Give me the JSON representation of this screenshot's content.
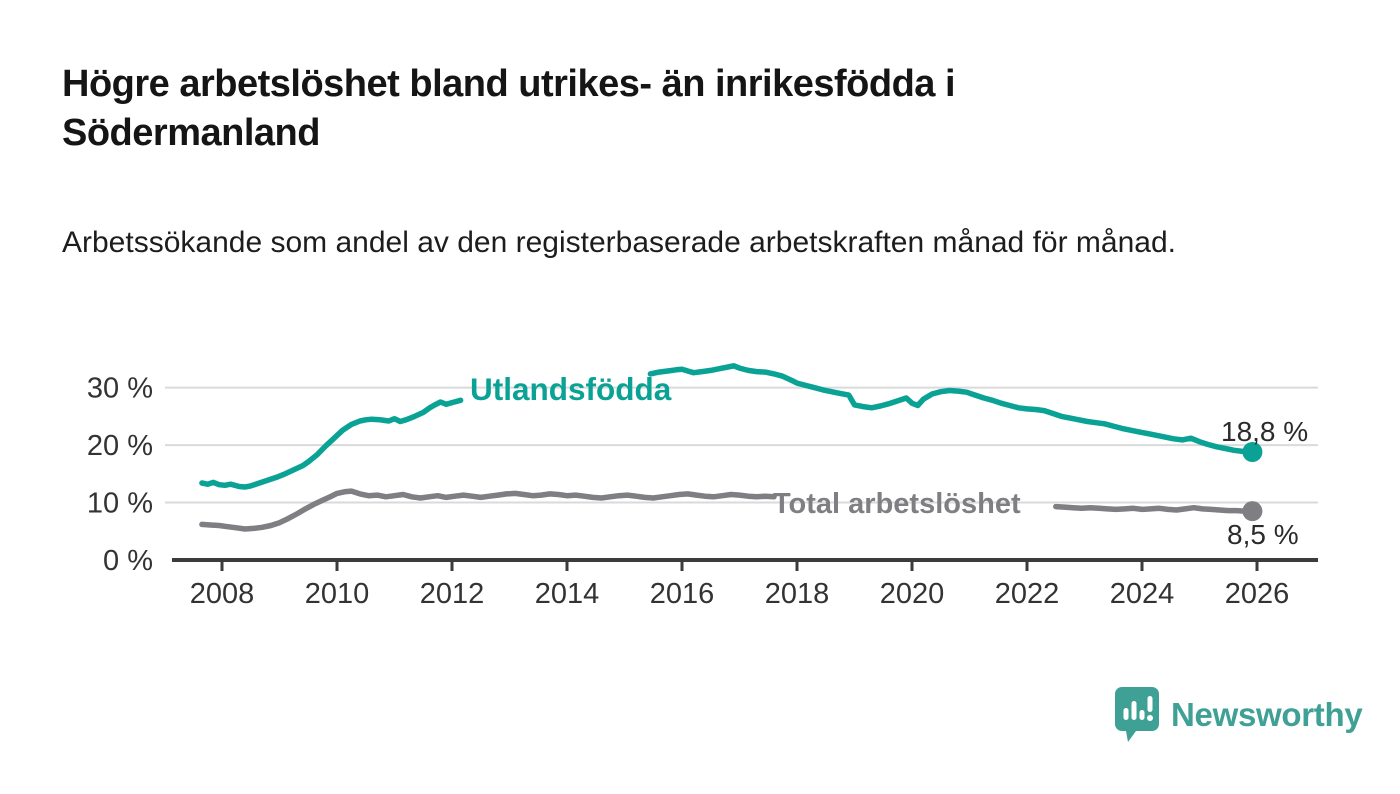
{
  "header": {
    "title": "Högre arbetslöshet bland utrikes- än inrikesfödda i Södermanland",
    "subtitle": "Arbetssökande som andel av den registerbaserade arbetskraften månad för månad."
  },
  "footer": {
    "brand": "Newsworthy",
    "logo_icon": "speech-bubble-with-bar-chart-and-exclamation",
    "brand_color": "#3fa096"
  },
  "colors": {
    "series_foreign_born": "#0ba296",
    "series_total": "#7e7e83",
    "gridline": "#dadada",
    "axis": "#3b3b3b",
    "axis_text": "#333333",
    "value_label_text": "#2b2b2b",
    "background": "#ffffff"
  },
  "chart_data": {
    "type": "line",
    "unit": "%",
    "grid": "horizontal",
    "legend_position": "inline-labels",
    "x_axis": {
      "ticks": [
        2008,
        2010,
        2012,
        2014,
        2016,
        2018,
        2020,
        2022,
        2024,
        2026
      ],
      "range": [
        2007.6,
        2027.0
      ]
    },
    "y_axis": {
      "ticks": [
        0,
        10,
        20,
        30
      ],
      "tick_suffix": " %",
      "range": [
        0,
        35
      ]
    },
    "series": [
      {
        "name": "Utlandsfödda",
        "color": "#0ba296",
        "end_value": 18.8,
        "end_label": "18,8 %",
        "segments": [
          [
            [
              2007.65,
              13.4
            ],
            [
              2007.75,
              13.2
            ],
            [
              2007.85,
              13.5
            ],
            [
              2007.95,
              13.1
            ],
            [
              2008.05,
              13.0
            ],
            [
              2008.15,
              13.2
            ],
            [
              2008.3,
              12.8
            ],
            [
              2008.4,
              12.7
            ],
            [
              2008.5,
              12.9
            ],
            [
              2008.65,
              13.4
            ],
            [
              2008.8,
              13.9
            ],
            [
              2008.95,
              14.4
            ],
            [
              2009.1,
              15.0
            ],
            [
              2009.25,
              15.7
            ],
            [
              2009.4,
              16.4
            ],
            [
              2009.5,
              17.1
            ],
            [
              2009.65,
              18.3
            ],
            [
              2009.8,
              19.8
            ],
            [
              2009.95,
              21.2
            ],
            [
              2010.1,
              22.6
            ],
            [
              2010.25,
              23.6
            ],
            [
              2010.4,
              24.2
            ],
            [
              2010.5,
              24.4
            ],
            [
              2010.6,
              24.5
            ],
            [
              2010.75,
              24.4
            ],
            [
              2010.9,
              24.2
            ],
            [
              2011.0,
              24.6
            ],
            [
              2011.1,
              24.1
            ],
            [
              2011.2,
              24.4
            ],
            [
              2011.35,
              25.0
            ],
            [
              2011.5,
              25.7
            ],
            [
              2011.6,
              26.4
            ],
            [
              2011.7,
              27.0
            ],
            [
              2011.8,
              27.5
            ],
            [
              2011.9,
              27.1
            ],
            [
              2012.0,
              27.4
            ],
            [
              2012.15,
              27.8
            ]
          ],
          [
            [
              2015.45,
              32.4
            ],
            [
              2015.6,
              32.7
            ],
            [
              2015.75,
              32.9
            ],
            [
              2015.9,
              33.1
            ],
            [
              2016.0,
              33.2
            ],
            [
              2016.1,
              32.9
            ],
            [
              2016.2,
              32.6
            ],
            [
              2016.35,
              32.8
            ],
            [
              2016.5,
              33.0
            ],
            [
              2016.65,
              33.3
            ],
            [
              2016.8,
              33.6
            ],
            [
              2016.9,
              33.8
            ],
            [
              2017.0,
              33.4
            ],
            [
              2017.15,
              33.0
            ],
            [
              2017.3,
              32.8
            ],
            [
              2017.45,
              32.7
            ],
            [
              2017.6,
              32.4
            ],
            [
              2017.75,
              32.0
            ],
            [
              2017.9,
              31.3
            ],
            [
              2018.0,
              30.8
            ],
            [
              2018.15,
              30.4
            ],
            [
              2018.3,
              30.0
            ],
            [
              2018.45,
              29.6
            ],
            [
              2018.6,
              29.3
            ],
            [
              2018.75,
              29.0
            ],
            [
              2018.9,
              28.7
            ],
            [
              2019.0,
              27.0
            ],
            [
              2019.15,
              26.7
            ],
            [
              2019.3,
              26.5
            ],
            [
              2019.45,
              26.8
            ],
            [
              2019.6,
              27.2
            ],
            [
              2019.75,
              27.7
            ],
            [
              2019.9,
              28.2
            ],
            [
              2020.0,
              27.3
            ],
            [
              2020.1,
              26.9
            ],
            [
              2020.2,
              28.0
            ],
            [
              2020.35,
              28.9
            ],
            [
              2020.5,
              29.3
            ],
            [
              2020.65,
              29.5
            ],
            [
              2020.8,
              29.4
            ],
            [
              2020.95,
              29.2
            ],
            [
              2021.1,
              28.7
            ],
            [
              2021.25,
              28.2
            ],
            [
              2021.4,
              27.8
            ],
            [
              2021.55,
              27.3
            ],
            [
              2021.7,
              26.9
            ],
            [
              2021.85,
              26.5
            ],
            [
              2022.0,
              26.3
            ],
            [
              2022.15,
              26.2
            ],
            [
              2022.3,
              26.0
            ],
            [
              2022.45,
              25.5
            ],
            [
              2022.6,
              25.0
            ],
            [
              2022.75,
              24.7
            ],
            [
              2022.9,
              24.4
            ],
            [
              2023.05,
              24.1
            ],
            [
              2023.2,
              23.9
            ],
            [
              2023.35,
              23.7
            ],
            [
              2023.5,
              23.3
            ],
            [
              2023.65,
              22.9
            ],
            [
              2023.8,
              22.6
            ],
            [
              2023.95,
              22.3
            ],
            [
              2024.1,
              22.0
            ],
            [
              2024.25,
              21.7
            ],
            [
              2024.4,
              21.4
            ],
            [
              2024.55,
              21.1
            ],
            [
              2024.7,
              20.9
            ],
            [
              2024.85,
              21.2
            ],
            [
              2025.0,
              20.6
            ],
            [
              2025.15,
              20.1
            ],
            [
              2025.3,
              19.7
            ],
            [
              2025.45,
              19.4
            ],
            [
              2025.6,
              19.1
            ],
            [
              2025.75,
              18.9
            ],
            [
              2025.92,
              18.8
            ]
          ]
        ]
      },
      {
        "name": "Total arbetslöshet",
        "color": "#7e7e83",
        "end_value": 8.5,
        "end_label": "8,5 %",
        "segments": [
          [
            [
              2007.65,
              6.2
            ],
            [
              2007.8,
              6.1
            ],
            [
              2007.95,
              6.0
            ],
            [
              2008.1,
              5.8
            ],
            [
              2008.25,
              5.6
            ],
            [
              2008.4,
              5.4
            ],
            [
              2008.55,
              5.5
            ],
            [
              2008.7,
              5.7
            ],
            [
              2008.85,
              6.0
            ],
            [
              2009.0,
              6.5
            ],
            [
              2009.15,
              7.2
            ],
            [
              2009.3,
              8.0
            ],
            [
              2009.45,
              8.9
            ],
            [
              2009.6,
              9.7
            ],
            [
              2009.75,
              10.4
            ],
            [
              2009.9,
              11.1
            ],
            [
              2010.0,
              11.6
            ],
            [
              2010.15,
              11.9
            ],
            [
              2010.25,
              12.0
            ],
            [
              2010.4,
              11.5
            ],
            [
              2010.55,
              11.2
            ],
            [
              2010.7,
              11.3
            ],
            [
              2010.85,
              11.0
            ],
            [
              2011.0,
              11.2
            ],
            [
              2011.15,
              11.4
            ],
            [
              2011.3,
              11.0
            ],
            [
              2011.45,
              10.8
            ],
            [
              2011.6,
              11.0
            ],
            [
              2011.75,
              11.2
            ],
            [
              2011.9,
              10.9
            ],
            [
              2012.05,
              11.1
            ],
            [
              2012.2,
              11.3
            ],
            [
              2012.35,
              11.1
            ],
            [
              2012.5,
              10.9
            ],
            [
              2012.65,
              11.1
            ],
            [
              2012.8,
              11.3
            ],
            [
              2012.95,
              11.5
            ],
            [
              2013.1,
              11.6
            ],
            [
              2013.25,
              11.4
            ],
            [
              2013.4,
              11.2
            ],
            [
              2013.55,
              11.3
            ],
            [
              2013.7,
              11.5
            ],
            [
              2013.85,
              11.4
            ],
            [
              2014.0,
              11.2
            ],
            [
              2014.15,
              11.3
            ],
            [
              2014.3,
              11.1
            ],
            [
              2014.45,
              10.9
            ],
            [
              2014.6,
              10.8
            ],
            [
              2014.75,
              11.0
            ],
            [
              2014.9,
              11.2
            ],
            [
              2015.05,
              11.3
            ],
            [
              2015.2,
              11.1
            ],
            [
              2015.35,
              10.9
            ],
            [
              2015.5,
              10.8
            ],
            [
              2015.65,
              11.0
            ],
            [
              2015.8,
              11.2
            ],
            [
              2015.95,
              11.4
            ],
            [
              2016.1,
              11.5
            ],
            [
              2016.25,
              11.3
            ],
            [
              2016.4,
              11.1
            ],
            [
              2016.55,
              11.0
            ],
            [
              2016.7,
              11.2
            ],
            [
              2016.85,
              11.4
            ],
            [
              2017.0,
              11.3
            ],
            [
              2017.15,
              11.1
            ],
            [
              2017.3,
              11.0
            ],
            [
              2017.45,
              11.1
            ],
            [
              2017.6,
              11.0
            ]
          ],
          [
            [
              2022.5,
              9.3
            ],
            [
              2022.65,
              9.2
            ],
            [
              2022.8,
              9.1
            ],
            [
              2022.95,
              9.0
            ],
            [
              2023.1,
              9.1
            ],
            [
              2023.25,
              9.0
            ],
            [
              2023.4,
              8.9
            ],
            [
              2023.55,
              8.8
            ],
            [
              2023.7,
              8.9
            ],
            [
              2023.85,
              9.0
            ],
            [
              2024.0,
              8.8
            ],
            [
              2024.15,
              8.9
            ],
            [
              2024.3,
              9.0
            ],
            [
              2024.45,
              8.8
            ],
            [
              2024.6,
              8.7
            ],
            [
              2024.75,
              8.9
            ],
            [
              2024.9,
              9.1
            ],
            [
              2025.05,
              8.9
            ],
            [
              2025.2,
              8.8
            ],
            [
              2025.35,
              8.7
            ],
            [
              2025.5,
              8.6
            ],
            [
              2025.65,
              8.6
            ],
            [
              2025.8,
              8.5
            ],
            [
              2025.92,
              8.5
            ]
          ]
        ]
      }
    ]
  }
}
